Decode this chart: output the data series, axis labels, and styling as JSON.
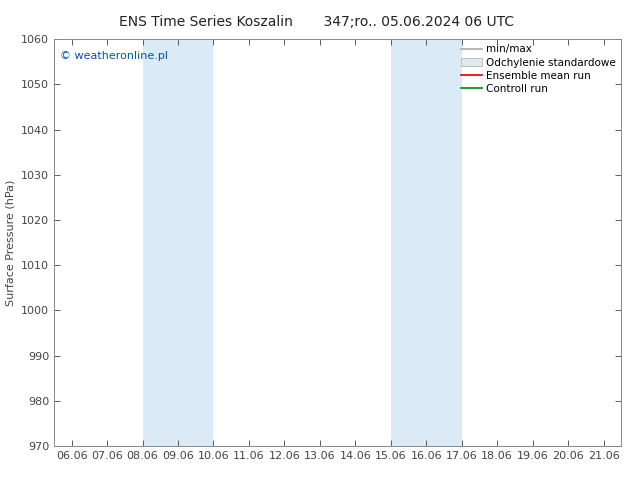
{
  "title": "ENS Time Series Koszalin       347;ro.. 05.06.2024 06 UTC",
  "ylabel": "Surface Pressure (hPa)",
  "ylim": [
    970,
    1060
  ],
  "yticks": [
    970,
    980,
    990,
    1000,
    1010,
    1020,
    1030,
    1040,
    1050,
    1060
  ],
  "x_labels": [
    "06.06",
    "07.06",
    "08.06",
    "09.06",
    "10.06",
    "11.06",
    "12.06",
    "13.06",
    "14.06",
    "15.06",
    "16.06",
    "17.06",
    "18.06",
    "19.06",
    "20.06",
    "21.06"
  ],
  "x_values": [
    0,
    1,
    2,
    3,
    4,
    5,
    6,
    7,
    8,
    9,
    10,
    11,
    12,
    13,
    14,
    15
  ],
  "shaded_regions": [
    {
      "xmin": 2,
      "xmax": 4,
      "color": "#daeaf7"
    },
    {
      "xmin": 9,
      "xmax": 11,
      "color": "#daeaf7"
    }
  ],
  "watermark": "© weatheronline.pl",
  "watermark_color": "#0055aa",
  "legend_items": [
    {
      "label": "min/max",
      "type": "line",
      "color": "#aaaaaa",
      "lw": 1.2
    },
    {
      "label": "Odchylenie standardowe",
      "type": "patch",
      "facecolor": "#e0e8f0",
      "edgecolor": "#aaaaaa"
    },
    {
      "label": "Ensemble mean run",
      "type": "line",
      "color": "#dd0000",
      "lw": 1.2
    },
    {
      "label": "Controll run",
      "type": "line",
      "color": "#008800",
      "lw": 1.2
    }
  ],
  "background_color": "#ffffff",
  "plot_bg_color": "#ffffff",
  "spine_color": "#888888",
  "tick_color": "#444444",
  "title_fontsize": 10,
  "ylabel_fontsize": 8,
  "tick_fontsize": 8,
  "legend_fontsize": 7.5,
  "watermark_fontsize": 8
}
